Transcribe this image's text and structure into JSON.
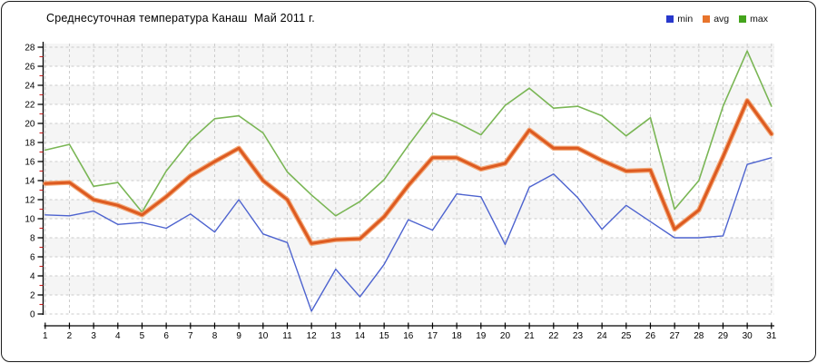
{
  "window": {
    "title": "Среднесуточная температура Канаш  Май 2011 г."
  },
  "legend": {
    "position": "top-right",
    "items": [
      {
        "label": "min",
        "color": "#2838cc"
      },
      {
        "label": "avg",
        "color": "#e8742c"
      },
      {
        "label": "max",
        "color": "#44a41c"
      }
    ]
  },
  "chart_data": {
    "type": "line",
    "title": "Среднесуточная температура Канаш  Май 2011 г.",
    "xlabel": "",
    "ylabel": "",
    "x": [
      1,
      2,
      3,
      4,
      5,
      6,
      7,
      8,
      9,
      10,
      11,
      12,
      13,
      14,
      15,
      16,
      17,
      18,
      19,
      20,
      21,
      22,
      23,
      24,
      25,
      26,
      27,
      28,
      29,
      30,
      31
    ],
    "series": [
      {
        "name": "min",
        "color": "#4d63cf",
        "line_width": 1.4,
        "values": [
          10.4,
          10.3,
          10.8,
          9.4,
          9.6,
          9.0,
          10.5,
          8.6,
          12.0,
          8.4,
          7.5,
          0.3,
          4.7,
          1.8,
          5.2,
          9.9,
          8.8,
          12.6,
          12.3,
          7.3,
          13.3,
          14.7,
          12.2,
          8.9,
          11.4,
          9.7,
          8.0,
          8.0,
          8.2,
          15.7,
          16.4
        ]
      },
      {
        "name": "avg",
        "color": "#dd5a20",
        "halo_color": "#f2a878",
        "line_width": 3,
        "values": [
          13.7,
          13.8,
          12.0,
          11.4,
          10.4,
          12.3,
          14.5,
          16.0,
          17.4,
          14.0,
          12.0,
          7.4,
          7.8,
          7.9,
          10.2,
          13.5,
          16.4,
          16.4,
          15.2,
          15.8,
          19.3,
          17.4,
          17.4,
          16.1,
          15.0,
          15.1,
          8.9,
          10.9,
          16.5,
          22.4,
          18.9
        ]
      },
      {
        "name": "max",
        "color": "#7ab655",
        "line_width": 1.6,
        "values": [
          17.2,
          17.8,
          13.4,
          13.8,
          10.7,
          15.0,
          18.2,
          20.5,
          20.8,
          19.0,
          14.9,
          12.5,
          10.3,
          11.8,
          14.1,
          17.7,
          21.1,
          20.1,
          18.8,
          21.9,
          23.7,
          21.6,
          21.8,
          20.8,
          18.7,
          20.6,
          11.0,
          14.0,
          21.8,
          27.6,
          21.8
        ]
      }
    ],
    "ylim": [
      0,
      28
    ],
    "ytick_step": 2,
    "ytick_labels": [
      "0",
      "2",
      "4",
      "6",
      "8",
      "10",
      "12",
      "14",
      "16",
      "18",
      "20",
      "22",
      "24",
      "26",
      "28"
    ],
    "grid": "dashed",
    "plot_bands": "alternating horizontal stripes",
    "legend_position": "top-right"
  },
  "style": {
    "grid_color": "#cbcbcb",
    "band_color": "#f5f5f5",
    "band_alt_color": "#ffffff",
    "axis_color": "#000000",
    "minor_tick_color": "#cc2020",
    "label_color": "#000000"
  }
}
